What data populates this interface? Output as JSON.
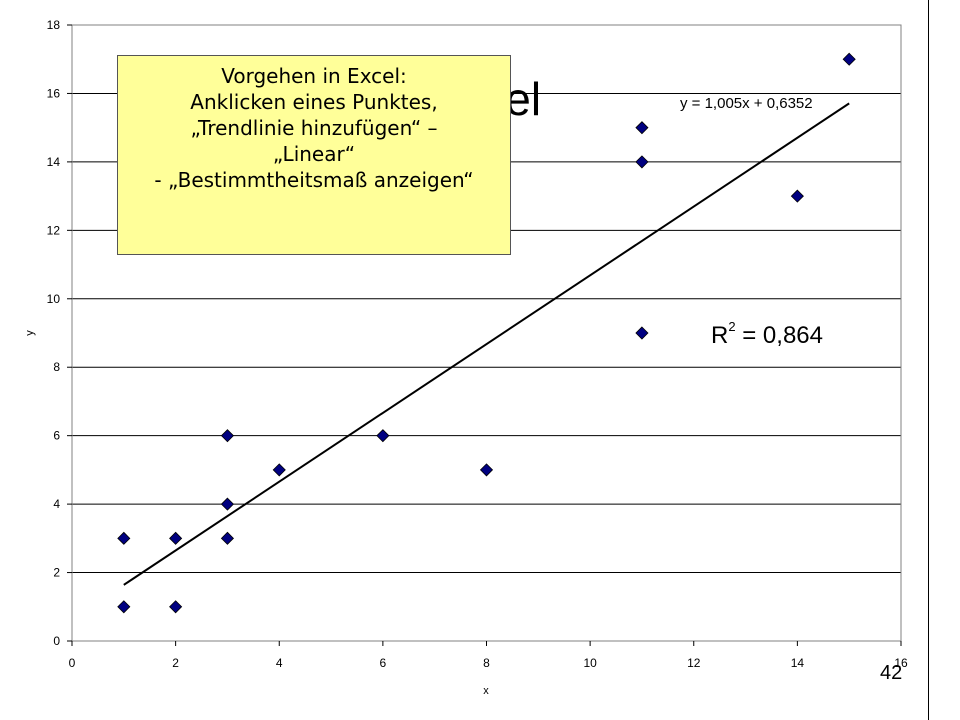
{
  "slide": {
    "background_title": "Beispiel",
    "page_number": "42"
  },
  "callout": {
    "lines": [
      "Vorgehen in Excel:",
      "Anklicken eines Punktes,",
      "„Trendlinie hinzufügen“ –",
      "„Linear“",
      "- „Bestimmtheitsmaß anzeigen“"
    ],
    "background": "#ffff99"
  },
  "chart_data": {
    "type": "scatter",
    "xlabel": "x",
    "ylabel": "y",
    "xlim": [
      0,
      16
    ],
    "ylim": [
      0,
      18
    ],
    "xticks": [
      0,
      2,
      4,
      6,
      8,
      10,
      12,
      14,
      16
    ],
    "yticks": [
      0,
      2,
      4,
      6,
      8,
      10,
      12,
      14,
      16,
      18
    ],
    "grid": "horizontal",
    "marker": "diamond",
    "marker_color": "#000080",
    "points": [
      {
        "x": 1,
        "y": 3
      },
      {
        "x": 1,
        "y": 1
      },
      {
        "x": 2,
        "y": 3
      },
      {
        "x": 2,
        "y": 1
      },
      {
        "x": 3,
        "y": 6
      },
      {
        "x": 3,
        "y": 4
      },
      {
        "x": 3,
        "y": 3
      },
      {
        "x": 4,
        "y": 5
      },
      {
        "x": 6,
        "y": 6
      },
      {
        "x": 8,
        "y": 5
      },
      {
        "x": 11,
        "y": 15
      },
      {
        "x": 11,
        "y": 14
      },
      {
        "x": 11,
        "y": 9
      },
      {
        "x": 14,
        "y": 13
      },
      {
        "x": 15,
        "y": 17
      }
    ],
    "trendline": {
      "type": "linear",
      "slope": 1.005,
      "intercept": 0.6352,
      "x_range": [
        1,
        15
      ],
      "equation": "y = 1,005x + 0,6352",
      "r2_label": "R",
      "r2_sup": "2",
      "r2_value": " = 0,864"
    }
  }
}
